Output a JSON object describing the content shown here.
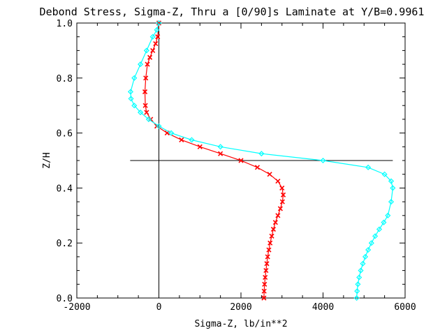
{
  "chart_data": {
    "type": "line",
    "title": "Debond Stress, Sigma-Z, Thru a [0/90]s Laminate at Y/B=0.9961",
    "xlabel": "Sigma-Z,  lb/in**2",
    "ylabel": "Z/H",
    "xlim": [
      -2000,
      6000
    ],
    "ylim": [
      0.0,
      1.0
    ],
    "xticks": [
      "-2000",
      "0",
      "2000",
      "4000",
      "6000"
    ],
    "yticks": [
      "0.0",
      "0.2",
      "0.4",
      "0.6",
      "0.8",
      "1.0"
    ],
    "reference_lines": {
      "vertical_x": 0,
      "horizontal": {
        "y": 0.5,
        "x_from": -700,
        "x_to": 5700
      }
    },
    "series": [
      {
        "name": "",
        "color": "#ff0000",
        "marker": "x",
        "x": [
          2560,
          2565,
          2575,
          2590,
          2610,
          2630,
          2650,
          2680,
          2710,
          2750,
          2790,
          2840,
          2900,
          2960,
          3010,
          3030,
          3000,
          2900,
          2700,
          2400,
          2000,
          1500,
          1000,
          550,
          200,
          -50,
          -200,
          -300,
          -330,
          -340,
          -320,
          -280,
          -220,
          -150,
          -80,
          -30,
          0
        ],
        "y": [
          0.0,
          0.025,
          0.05,
          0.075,
          0.1,
          0.125,
          0.15,
          0.175,
          0.2,
          0.225,
          0.25,
          0.275,
          0.3,
          0.325,
          0.35,
          0.375,
          0.4,
          0.425,
          0.45,
          0.475,
          0.5,
          0.525,
          0.55,
          0.575,
          0.6,
          0.625,
          0.65,
          0.675,
          0.7,
          0.75,
          0.8,
          0.85,
          0.875,
          0.9,
          0.925,
          0.95,
          1.0
        ]
      },
      {
        "name": "",
        "color": "#00ffff",
        "marker": "diamond",
        "x": [
          4820,
          4830,
          4850,
          4880,
          4920,
          4970,
          5030,
          5100,
          5180,
          5270,
          5370,
          5480,
          5580,
          5660,
          5700,
          5660,
          5500,
          5100,
          4000,
          2500,
          1500,
          800,
          300,
          0,
          -250,
          -450,
          -600,
          -680,
          -690,
          -600,
          -450,
          -300,
          -150,
          -50,
          0
        ],
        "y": [
          0.0,
          0.025,
          0.05,
          0.075,
          0.1,
          0.125,
          0.15,
          0.175,
          0.2,
          0.225,
          0.25,
          0.275,
          0.3,
          0.35,
          0.4,
          0.425,
          0.45,
          0.475,
          0.5,
          0.525,
          0.55,
          0.575,
          0.6,
          0.625,
          0.65,
          0.675,
          0.7,
          0.725,
          0.75,
          0.8,
          0.85,
          0.9,
          0.95,
          0.975,
          1.0
        ]
      }
    ]
  }
}
